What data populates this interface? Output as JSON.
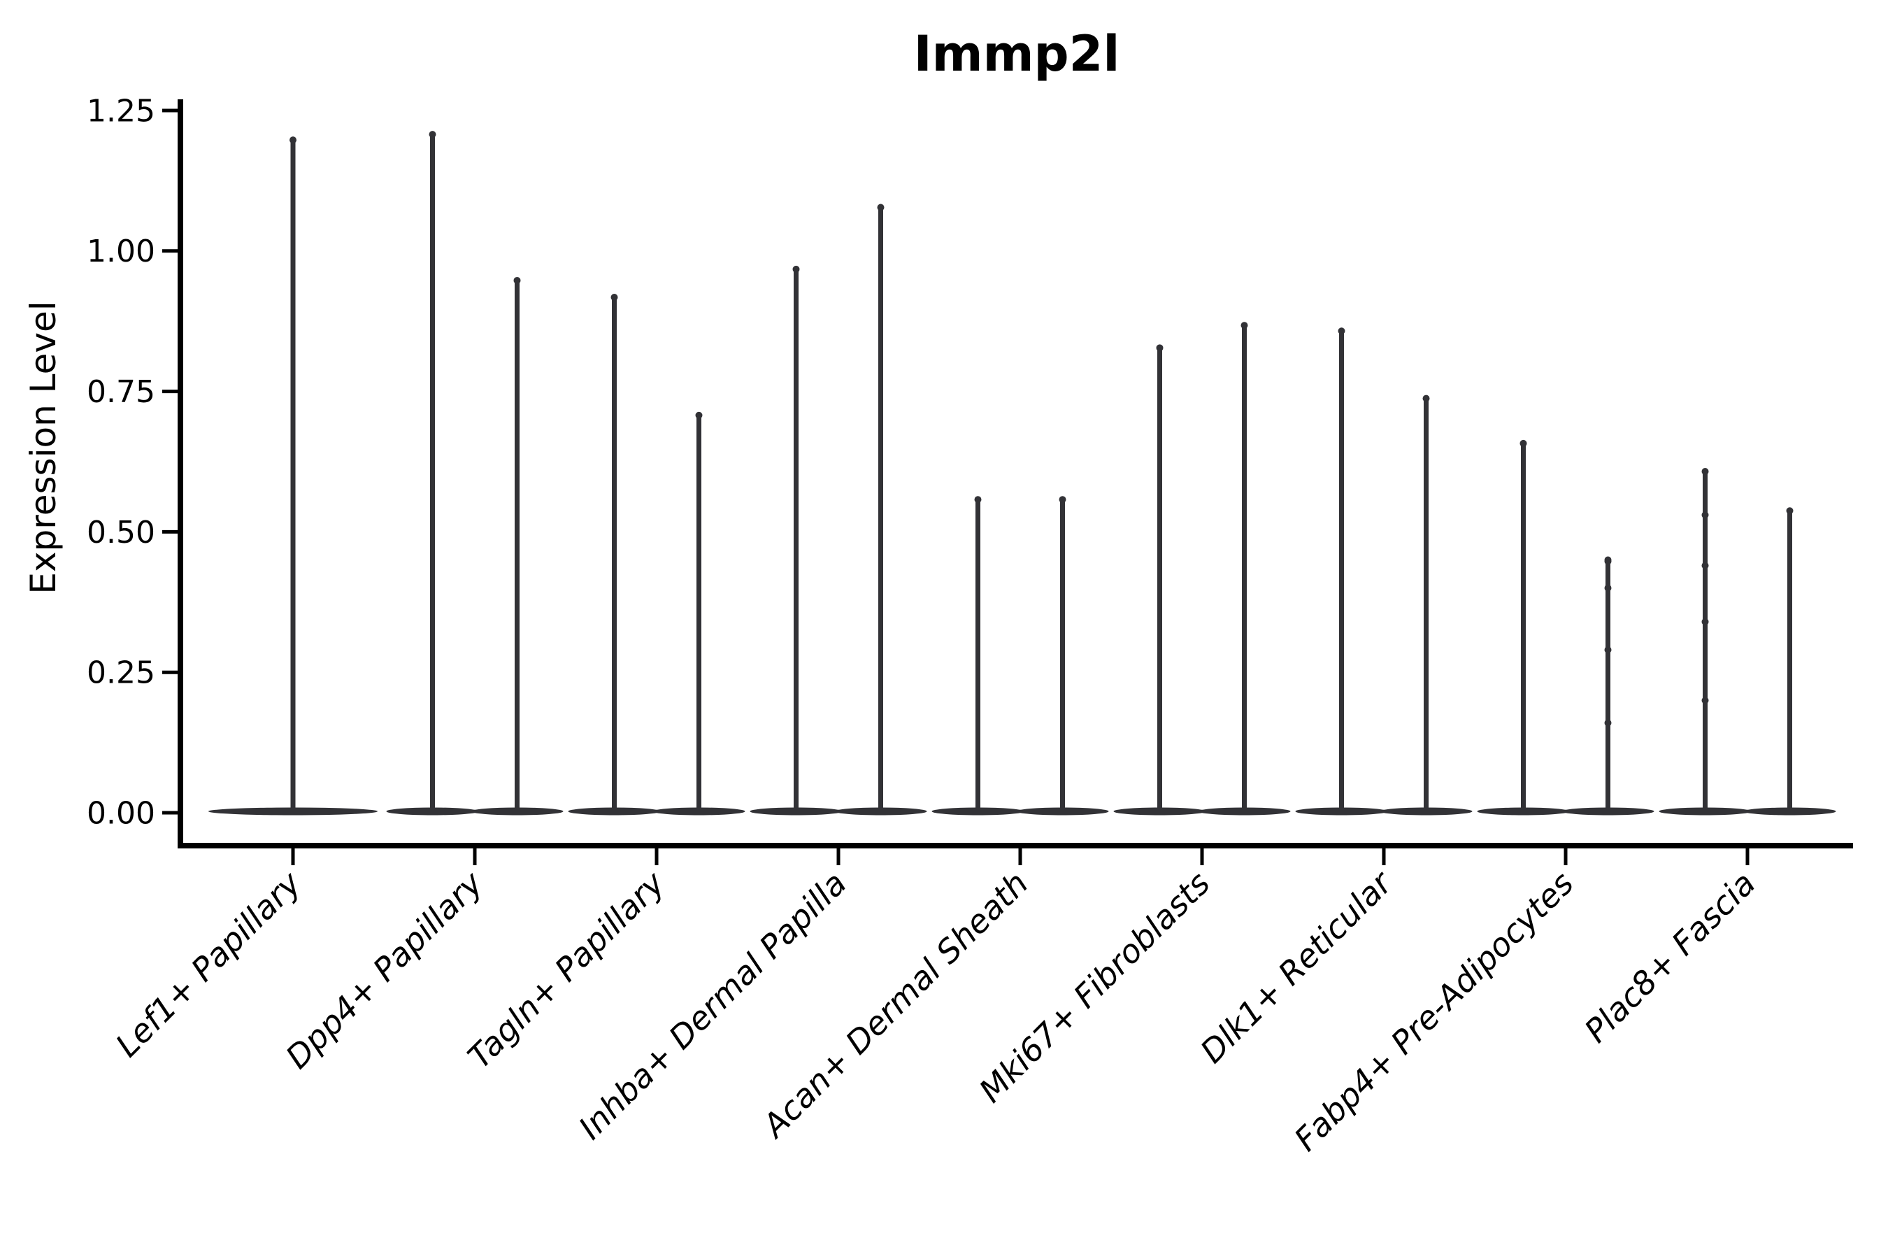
{
  "title": "Immp2l",
  "chart_data": {
    "type": "violin",
    "title": "Immp2l",
    "ylabel": "Expression Level",
    "xlabel": "",
    "grid": false,
    "legend_position": "none",
    "ylim": [
      -0.06,
      1.27
    ],
    "yticks": [
      {
        "value": 0.0,
        "label": "0.00"
      },
      {
        "value": 0.25,
        "label": "0.25"
      },
      {
        "value": 0.5,
        "label": "0.50"
      },
      {
        "value": 0.75,
        "label": "0.75"
      },
      {
        "value": 1.0,
        "label": "1.00"
      },
      {
        "value": 1.25,
        "label": "1.25"
      }
    ],
    "categories": [
      "Lef1+ Papillary",
      "Dpp4+ Papillary",
      "Tagln+ Papillary",
      "Inhba+ Dermal Papilla",
      "Acan+ Dermal Sheath",
      "Mki67+ Fibroblasts",
      "Dlk1+ Reticular",
      "Fabp4+ Pre-Adipocytes",
      "Plac8+ Fascia"
    ],
    "violins": [
      {
        "category": "Lef1+ Papillary",
        "groups": [
          {
            "max": 1.2,
            "points": []
          }
        ]
      },
      {
        "category": "Dpp4+ Papillary",
        "groups": [
          {
            "max": 1.21,
            "points": []
          },
          {
            "max": 0.95,
            "points": []
          }
        ]
      },
      {
        "category": "Tagln+ Papillary",
        "groups": [
          {
            "max": 0.92,
            "points": []
          },
          {
            "max": 0.71,
            "points": []
          }
        ]
      },
      {
        "category": "Inhba+ Dermal Papilla",
        "groups": [
          {
            "max": 0.97,
            "points": []
          },
          {
            "max": 1.08,
            "points": []
          }
        ]
      },
      {
        "category": "Acan+ Dermal Sheath",
        "groups": [
          {
            "max": 0.56,
            "points": []
          },
          {
            "max": 0.56,
            "points": []
          }
        ]
      },
      {
        "category": "Mki67+ Fibroblasts",
        "groups": [
          {
            "max": 0.83,
            "points": []
          },
          {
            "max": 0.87,
            "points": []
          }
        ]
      },
      {
        "category": "Dlk1+ Reticular",
        "groups": [
          {
            "max": 0.86,
            "points": []
          },
          {
            "max": 0.74,
            "points": []
          }
        ]
      },
      {
        "category": "Fabp4+ Pre-Adipocytes",
        "groups": [
          {
            "max": 0.66,
            "points": []
          },
          {
            "max": 0.45,
            "points": [
              0.45,
              0.4,
              0.29,
              0.16
            ]
          }
        ]
      },
      {
        "category": "Plac8+ Fascia",
        "groups": [
          {
            "max": 0.61,
            "points": [
              0.53,
              0.44,
              0.34,
              0.2
            ]
          },
          {
            "max": 0.54,
            "points": []
          }
        ]
      }
    ],
    "colors": {
      "violin": "#323236",
      "axis": "#000000",
      "background": "#ffffff"
    }
  }
}
